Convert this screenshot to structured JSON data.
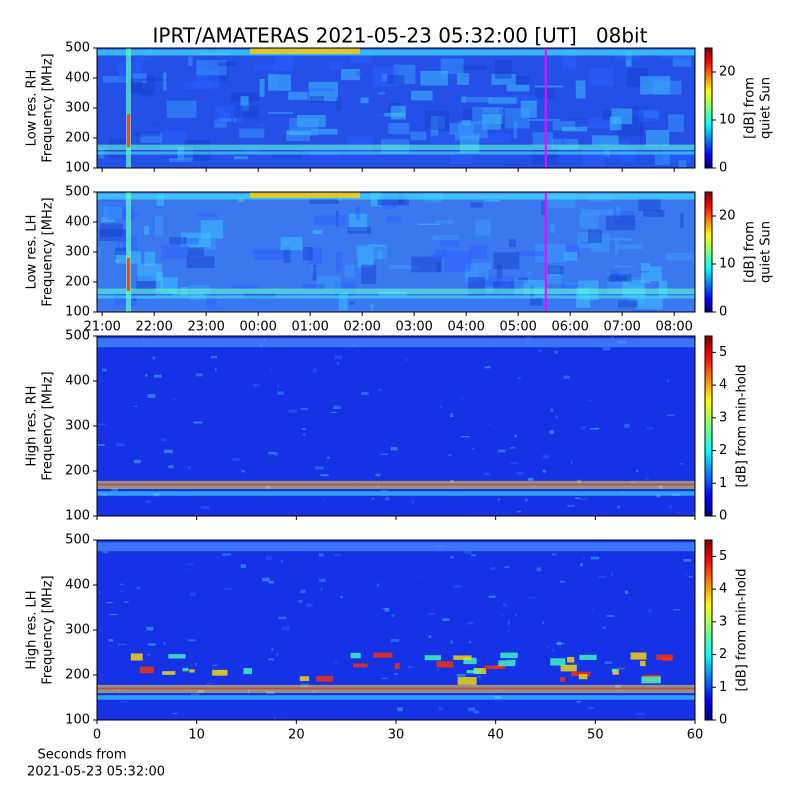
{
  "chart_data": [
    {
      "type": "spectrogram",
      "title": "IPRT/AMATERAS 2021-05-23 05:32:00 [UT]   08bit",
      "ylabel": [
        "Low res. RH",
        "Frequency [MHz]"
      ],
      "xlim": [
        20.9,
        32.4
      ],
      "ylim": [
        100,
        500
      ],
      "yticks": [
        100,
        200,
        300,
        400,
        500
      ],
      "marker_x": 29.53,
      "marker_color": "#ff00ff",
      "colormap": "jet",
      "clim": [
        0,
        25
      ],
      "cticks": [
        0,
        10,
        20
      ],
      "clabel": [
        "[dB] from",
        "quiet Sun"
      ]
    },
    {
      "type": "spectrogram",
      "ylabel": [
        "Low res. LH",
        "Frequency [MHz]"
      ],
      "xlim": [
        20.9,
        32.4
      ],
      "xticks": [
        {
          "value": 21,
          "label": "21:00"
        },
        {
          "value": 22,
          "label": "22:00"
        },
        {
          "value": 23,
          "label": "23:00"
        },
        {
          "value": 24,
          "label": "00:00"
        },
        {
          "value": 25,
          "label": "01:00"
        },
        {
          "value": 26,
          "label": "02:00"
        },
        {
          "value": 27,
          "label": "03:00"
        },
        {
          "value": 28,
          "label": "04:00"
        },
        {
          "value": 29,
          "label": "05:00"
        },
        {
          "value": 30,
          "label": "06:00"
        },
        {
          "value": 31,
          "label": "07:00"
        },
        {
          "value": 32,
          "label": "08:00"
        }
      ],
      "ylim": [
        100,
        500
      ],
      "yticks": [
        100,
        200,
        300,
        400,
        500
      ],
      "marker_x": 29.53,
      "marker_color": "#ff00ff",
      "colormap": "jet",
      "clim": [
        0,
        25
      ],
      "cticks": [
        0,
        10,
        20
      ],
      "clabel": [
        "[dB] from",
        "quiet Sun"
      ]
    },
    {
      "type": "spectrogram",
      "ylabel": [
        "High res. RH",
        "Frequency [MHz]"
      ],
      "xlim": [
        0,
        60
      ],
      "ylim": [
        100,
        500
      ],
      "yticks": [
        100,
        200,
        300,
        400,
        500
      ],
      "colormap": "jet",
      "clim": [
        0,
        5.5
      ],
      "cticks": [
        0,
        1,
        2,
        3,
        4,
        5
      ],
      "clabel": [
        "[dB] from min-hold"
      ]
    },
    {
      "type": "spectrogram",
      "ylabel": [
        "High res. LH",
        "Frequency [MHz]"
      ],
      "xlabel": [
        "Seconds from",
        "2021-05-23 05:32:00"
      ],
      "xlim": [
        0,
        60
      ],
      "xticks": [
        0,
        10,
        20,
        30,
        40,
        50,
        60
      ],
      "ylim": [
        100,
        500
      ],
      "yticks": [
        100,
        200,
        300,
        400,
        500
      ],
      "colormap": "jet",
      "clim": [
        0,
        5.5
      ],
      "cticks": [
        0,
        1,
        2,
        3,
        4,
        5
      ],
      "clabel": [
        "[dB] from min-hold"
      ]
    }
  ]
}
